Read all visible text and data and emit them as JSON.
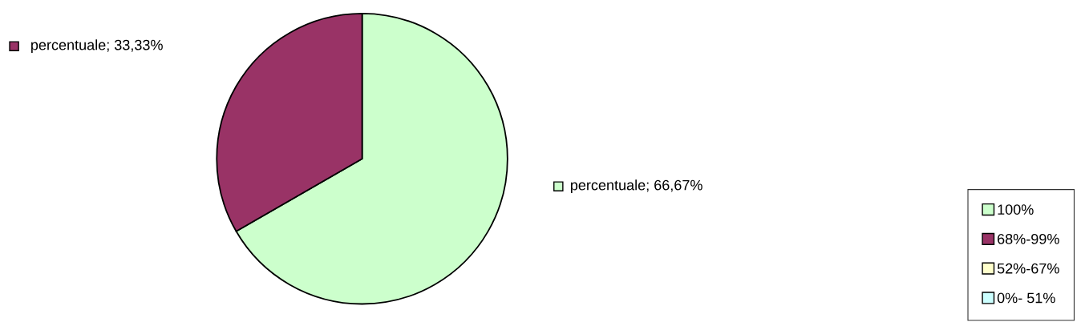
{
  "chart_data": {
    "type": "pie",
    "categories": [
      "100%",
      "68%-99%",
      "52%-67%",
      "0%- 51%"
    ],
    "values": [
      66.67,
      33.33,
      0,
      0
    ],
    "colors": [
      "#ccffcc",
      "#993366",
      "#ffffcc",
      "#ccffff"
    ],
    "value_labels": [
      "percentuale; 66,67%",
      "percentuale; 33,33%",
      null,
      null
    ],
    "legend": "bottom right"
  }
}
